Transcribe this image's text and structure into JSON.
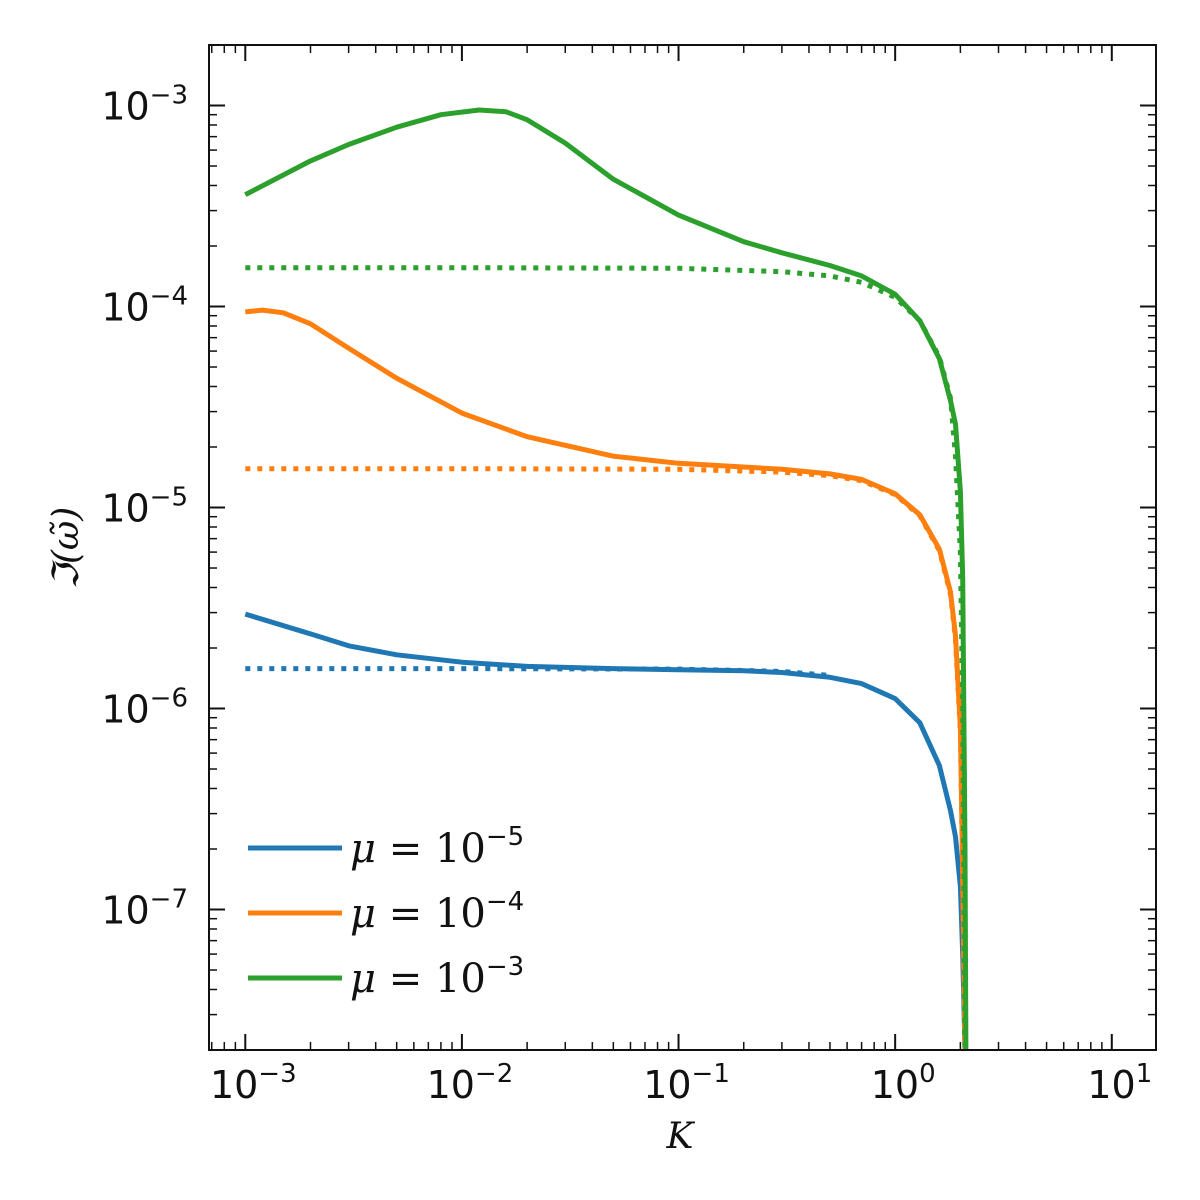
{
  "chart_data": {
    "type": "line",
    "xlabel": "K",
    "ylabel": "ℑ(ω̃)",
    "xscale": "log",
    "yscale": "log",
    "xlim": [
      0.00068,
      16
    ],
    "ylim": [
      2e-08,
      0.002
    ],
    "x_ticks": [
      {
        "base": "10",
        "exp": "−3"
      },
      {
        "base": "10",
        "exp": "−2"
      },
      {
        "base": "10",
        "exp": "−1"
      },
      {
        "base": "10",
        "exp": "0"
      },
      {
        "base": "10",
        "exp": "1"
      }
    ],
    "y_ticks": [
      {
        "base": "10",
        "exp": "−7"
      },
      {
        "base": "10",
        "exp": "−6"
      },
      {
        "base": "10",
        "exp": "−5"
      },
      {
        "base": "10",
        "exp": "−4"
      },
      {
        "base": "10",
        "exp": "−3"
      }
    ],
    "legend_placement": "lower-left",
    "series": [
      {
        "name": "μ = 10−5",
        "legend_prefix": "μ",
        "legend_eq": " = 10",
        "legend_exp": "−5",
        "color": "#1f77b4",
        "style": "solid",
        "x": [
          0.001,
          0.002,
          0.003,
          0.005,
          0.01,
          0.02,
          0.05,
          0.1,
          0.2,
          0.3,
          0.5,
          0.7,
          1.0,
          1.3,
          1.6,
          1.8,
          1.9,
          2.0,
          2.05,
          2.1
        ],
        "y": [
          2.95e-06,
          2.35e-06,
          2.05e-06,
          1.85e-06,
          1.7e-06,
          1.62e-06,
          1.58e-06,
          1.56e-06,
          1.54e-06,
          1.51e-06,
          1.43e-06,
          1.33e-06,
          1.12e-06,
          8.5e-07,
          5.2e-07,
          3.1e-07,
          2.3e-07,
          1.3e-07,
          6e-08,
          2e-08
        ]
      },
      {
        "name": "",
        "color": "#1f77b4",
        "style": "dotted",
        "x": [
          0.001,
          0.01,
          0.1,
          0.3,
          0.5
        ],
        "y": [
          1.58e-06,
          1.58e-06,
          1.57e-06,
          1.53e-06,
          1.46e-06
        ]
      },
      {
        "name": "μ = 10−4",
        "legend_prefix": "μ",
        "legend_eq": " = 10",
        "legend_exp": "−4",
        "color": "#ff7f0e",
        "style": "solid",
        "x": [
          0.001,
          0.0012,
          0.0015,
          0.002,
          0.003,
          0.005,
          0.01,
          0.02,
          0.05,
          0.1,
          0.2,
          0.3,
          0.5,
          0.7,
          1.0,
          1.3,
          1.6,
          1.8,
          1.9,
          2.0,
          2.05,
          2.1
        ],
        "y": [
          9.4e-05,
          9.6e-05,
          9.3e-05,
          8.2e-05,
          6.2e-05,
          4.4e-05,
          2.95e-05,
          2.25e-05,
          1.8e-05,
          1.66e-05,
          1.59e-05,
          1.55e-05,
          1.47e-05,
          1.38e-05,
          1.17e-05,
          9.2e-06,
          6.2e-06,
          3.8e-06,
          2.3e-06,
          8e-07,
          1.5e-07,
          2e-08
        ]
      },
      {
        "name": "",
        "color": "#ff7f0e",
        "style": "dotted",
        "x": [
          0.001,
          0.01,
          0.1,
          0.3,
          0.5,
          0.7,
          1.0,
          1.3,
          1.6,
          1.8,
          1.9,
          2.0,
          2.05,
          2.1
        ],
        "y": [
          1.56e-05,
          1.56e-05,
          1.55e-05,
          1.5e-05,
          1.44e-05,
          1.36e-05,
          1.16e-05,
          9.1e-06,
          6.1e-06,
          3.7e-06,
          2.2e-06,
          7.5e-07,
          1.4e-07,
          2e-08
        ]
      },
      {
        "name": "μ = 10−3",
        "legend_prefix": "μ",
        "legend_eq": " = 10",
        "legend_exp": "−3",
        "color": "#2ca02c",
        "style": "solid",
        "x": [
          0.001,
          0.002,
          0.003,
          0.005,
          0.008,
          0.012,
          0.016,
          0.02,
          0.03,
          0.05,
          0.1,
          0.2,
          0.3,
          0.5,
          0.7,
          1.0,
          1.3,
          1.6,
          1.8,
          1.9,
          2.0,
          2.05,
          2.1,
          2.12
        ],
        "y": [
          0.00036,
          0.00053,
          0.00064,
          0.00078,
          0.0009,
          0.00095,
          0.00093,
          0.00085,
          0.00065,
          0.00043,
          0.000285,
          0.00021,
          0.000185,
          0.00016,
          0.000142,
          0.000115,
          8.5e-05,
          5.5e-05,
          3.4e-05,
          2.6e-05,
          1.2e-05,
          4.5e-06,
          2e-07,
          2e-08
        ]
      },
      {
        "name": "",
        "color": "#2ca02c",
        "style": "dotted",
        "x": [
          0.001,
          0.01,
          0.1,
          0.3,
          0.5,
          0.7,
          1.0,
          1.3,
          1.6,
          1.8,
          1.9,
          2.0,
          2.05,
          2.1
        ],
        "y": [
          0.000156,
          0.000156,
          0.000155,
          0.000149,
          0.000142,
          0.000132,
          0.000111,
          8.5e-05,
          5.6e-05,
          3.5e-05,
          1.8e-05,
          6e-06,
          1e-06,
          2e-08
        ]
      }
    ]
  }
}
